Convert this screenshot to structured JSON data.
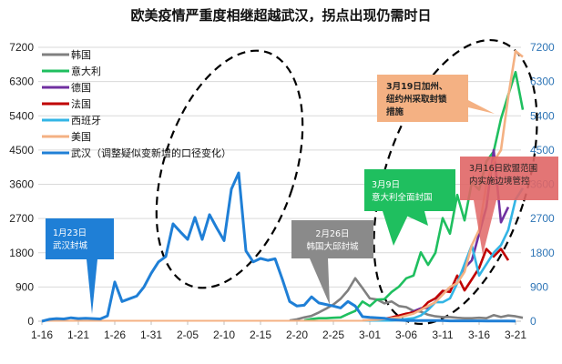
{
  "title": "欧美疫情严重度相继超越武汉，拐点出现仍需时日",
  "chart_data": {
    "type": "line",
    "title": "欧美疫情严重度相继超越武汉，拐点出现仍需时日",
    "xlabel": "",
    "ylabel": "",
    "ylim": [
      0,
      7200
    ],
    "y2lim": [
      0,
      7200
    ],
    "grid": true,
    "legend_position": "top-left",
    "yticks_left": [
      "0",
      "900",
      "1800",
      "2700",
      "3600",
      "4500",
      "5400",
      "6300",
      "7200"
    ],
    "yticks_right": [
      "0",
      "900",
      "1800",
      "2700",
      "3600",
      "4500",
      "5400",
      "6300",
      "7200"
    ],
    "xticks": [
      "1-16",
      "1-21",
      "1-26",
      "1-31",
      "2-05",
      "2-10",
      "2-15",
      "2-20",
      "2-25",
      "3-01",
      "3-06",
      "3-11",
      "3-16",
      "3-21"
    ],
    "x_start": "1-16",
    "x_end": "3-22",
    "series": [
      {
        "name": "韩国",
        "color": "#808080",
        "start_day": 34,
        "values": [
          20,
          50,
          100,
          140,
          230,
          330,
          440,
          590,
          810,
          1130,
          870,
          600,
          570,
          470,
          520,
          400,
          370,
          270,
          250,
          170,
          130,
          110,
          110,
          90,
          80,
          80,
          90,
          80,
          160,
          110,
          150,
          130,
          90
        ]
      },
      {
        "name": "意大利",
        "color": "#1fbf5f",
        "start_day": 36,
        "values": [
          20,
          60,
          80,
          80,
          90,
          100,
          190,
          270,
          520,
          400,
          570,
          580,
          770,
          910,
          1130,
          1200,
          1810,
          1480,
          1800,
          2710,
          2300,
          3320,
          2650,
          3650,
          3460,
          4200,
          4460,
          5320,
          5950,
          6550,
          5560
        ]
      },
      {
        "name": "德国",
        "color": "#7030a0",
        "start_day": 46,
        "values": [
          30,
          50,
          80,
          120,
          170,
          260,
          340,
          350,
          510,
          730,
          880,
          1000,
          1400,
          1600,
          2300,
          3000,
          4500,
          2600,
          3000
        ]
      },
      {
        "name": "法国",
        "color": "#c00000",
        "start_day": 46,
        "values": [
          30,
          60,
          100,
          150,
          200,
          230,
          300,
          500,
          600,
          800,
          770,
          1200,
          810,
          1100,
          1400,
          1900,
          1700,
          1900,
          1600
        ]
      },
      {
        "name": "西班牙",
        "color": "#33b5e5",
        "start_day": 48,
        "values": [
          20,
          30,
          60,
          80,
          150,
          300,
          500,
          500,
          600,
          1000,
          1500,
          2000,
          1200,
          1500,
          1800,
          2000,
          2400,
          3200,
          3500
        ]
      },
      {
        "name": "美国",
        "color": "#f4b183",
        "start_day": 44,
        "values": [
          20,
          30,
          40,
          60,
          80,
          100,
          150,
          200,
          300,
          400,
          500,
          700,
          900,
          1000,
          1300,
          2000,
          2400,
          3600,
          4200,
          4500,
          5900,
          7100,
          6950
        ]
      },
      {
        "name": "武汉（调整疑似变新增的口径变化）",
        "color": "#1f7fd6",
        "start_day": 0,
        "values": [
          0,
          50,
          70,
          60,
          90,
          70,
          80,
          70,
          60,
          140,
          1030,
          520,
          590,
          660,
          900,
          1260,
          1560,
          1700,
          2560,
          2350,
          2150,
          2730,
          2150,
          2800,
          2450,
          2120,
          3470,
          3900,
          1850,
          1560,
          1650,
          1600,
          1640,
          1100,
          520,
          400,
          420,
          640,
          480,
          440,
          400,
          350,
          520,
          400,
          120,
          100,
          90,
          80,
          40,
          30,
          20,
          20,
          20,
          20,
          20,
          20,
          10,
          10,
          10,
          10,
          10,
          5,
          5,
          5,
          5,
          2
        ]
      }
    ],
    "annotations": [
      {
        "text": "1月23日\n武汉封城",
        "color": "#1f7fd6",
        "anchor_date": "1-23"
      },
      {
        "text": "2月26日\n韩国大邱封城",
        "color": "#808080",
        "anchor_date": "2-26"
      },
      {
        "text": "3月9日\n意大利全面封国",
        "color": "#1fbf5f",
        "anchor_date": "3-09"
      },
      {
        "text": "3月16日欧盟范围\n内实施边境管控",
        "color": "#e06666",
        "anchor_date": "3-16"
      },
      {
        "text": "3月19日加州、\n纽约州采取封锁\n措施",
        "color": "#f4b183",
        "anchor_date": "3-19"
      }
    ]
  },
  "legend": [
    {
      "label": "韩国",
      "color": "#808080"
    },
    {
      "label": "意大利",
      "color": "#1fbf5f"
    },
    {
      "label": "德国",
      "color": "#7030a0"
    },
    {
      "label": "法国",
      "color": "#c00000"
    },
    {
      "label": "西班牙",
      "color": "#33b5e5"
    },
    {
      "label": "美国",
      "color": "#f4b183"
    },
    {
      "label": "武汉（调整疑似变新增的口径变化）",
      "color": "#1f7fd6"
    }
  ],
  "callouts": {
    "wuhan": {
      "line1": "1月23日",
      "line2": "武汉封城"
    },
    "korea": {
      "line1": "2月26日",
      "line2": "韩国大邱封城"
    },
    "italy": {
      "line1": "3月9日",
      "line2": "意大利全面封国"
    },
    "eu": {
      "line1": "3月16日欧盟范围",
      "line2": "内实施边境管控"
    },
    "us": {
      "line1": "3月19日加州、",
      "line2": "纽约州采取封锁",
      "line3": "措施"
    }
  }
}
